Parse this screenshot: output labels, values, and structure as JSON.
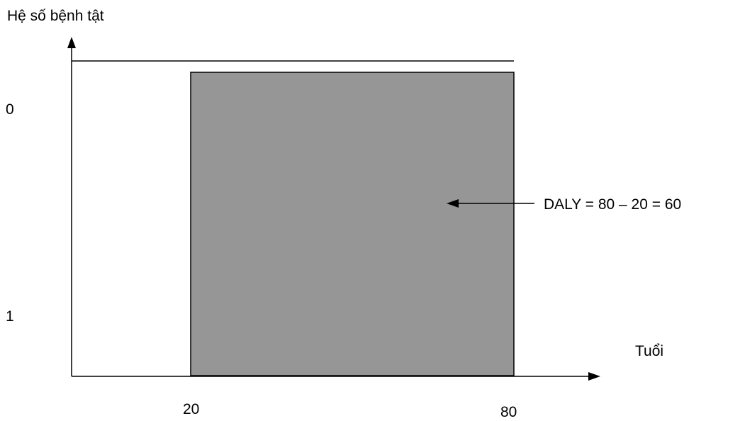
{
  "y_axis": {
    "title": "Hệ số bệnh tật",
    "ticks": [
      "0",
      "1"
    ]
  },
  "x_axis": {
    "title": "Tuổi",
    "ticks": [
      "20",
      "80"
    ]
  },
  "annotation": {
    "text": "DALY = 80 – 20 =  60"
  },
  "colors": {
    "region_fill": "#969696",
    "line": "#000000",
    "background": "#ffffff"
  }
}
